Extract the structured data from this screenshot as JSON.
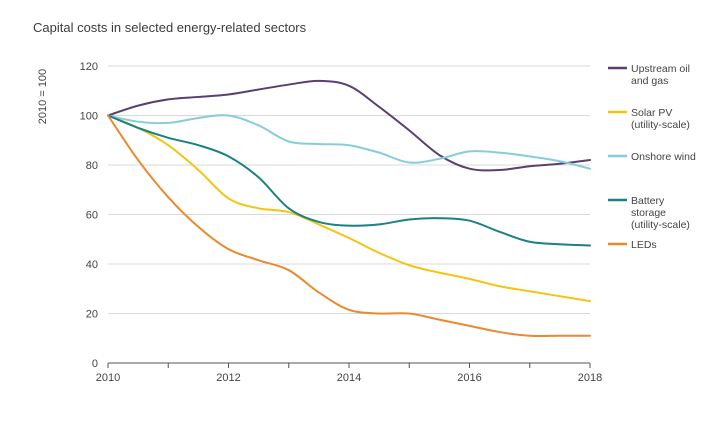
{
  "chart_data": {
    "type": "line",
    "title": "Capital costs in selected energy-related sectors",
    "ylabel": "2010 = 100",
    "xlabel": "",
    "xlim": [
      2010,
      2018
    ],
    "ylim": [
      0,
      120
    ],
    "x_ticks": [
      "2010",
      "2012",
      "2014",
      "2016",
      "2018"
    ],
    "y_ticks": [
      "0",
      "20",
      "40",
      "60",
      "80",
      "100",
      "120"
    ],
    "grid": "horizontal",
    "legend_position": "right",
    "series": [
      {
        "name_lines": [
          "Upstream oil",
          "and gas"
        ],
        "color": "#5a3f73",
        "points": [
          [
            2010,
            100
          ],
          [
            2010.5,
            104
          ],
          [
            2011,
            106.5
          ],
          [
            2011.5,
            107.5
          ],
          [
            2012,
            108.5
          ],
          [
            2012.5,
            110.5
          ],
          [
            2013,
            112.5
          ],
          [
            2013.5,
            114
          ],
          [
            2014,
            112
          ],
          [
            2014.5,
            103.5
          ],
          [
            2015,
            94
          ],
          [
            2015.5,
            84
          ],
          [
            2016,
            78.5
          ],
          [
            2016.5,
            78
          ],
          [
            2017,
            79.5
          ],
          [
            2017.5,
            80.5
          ],
          [
            2018,
            82
          ]
        ]
      },
      {
        "name_lines": [
          "Solar PV",
          "(utility-scale)"
        ],
        "color": "#f2c511",
        "points": [
          [
            2010,
            100
          ],
          [
            2010.5,
            95
          ],
          [
            2011,
            88
          ],
          [
            2011.5,
            78
          ],
          [
            2012,
            66.5
          ],
          [
            2012.5,
            62.5
          ],
          [
            2013,
            61
          ],
          [
            2013.5,
            56
          ],
          [
            2014,
            50.5
          ],
          [
            2014.5,
            44.5
          ],
          [
            2015,
            39.5
          ],
          [
            2015.5,
            36.5
          ],
          [
            2016,
            34
          ],
          [
            2016.5,
            31
          ],
          [
            2017,
            29
          ],
          [
            2017.5,
            27
          ],
          [
            2018,
            25
          ]
        ]
      },
      {
        "name_lines": [
          "Onshore wind"
        ],
        "color": "#86cdd9",
        "points": [
          [
            2010,
            100
          ],
          [
            2010.5,
            97.5
          ],
          [
            2011,
            97
          ],
          [
            2011.5,
            99
          ],
          [
            2012,
            100
          ],
          [
            2012.5,
            96
          ],
          [
            2013,
            89.5
          ],
          [
            2013.5,
            88.5
          ],
          [
            2014,
            88
          ],
          [
            2014.5,
            85
          ],
          [
            2015,
            81
          ],
          [
            2015.5,
            82.5
          ],
          [
            2016,
            85.5
          ],
          [
            2016.5,
            85
          ],
          [
            2017,
            83.5
          ],
          [
            2017.5,
            81.5
          ],
          [
            2018,
            78.5
          ]
        ]
      },
      {
        "name_lines": [
          "Battery",
          "storage",
          "(utility-scale)"
        ],
        "color": "#1a8185",
        "points": [
          [
            2010,
            100
          ],
          [
            2010.5,
            95
          ],
          [
            2011,
            91
          ],
          [
            2011.5,
            88
          ],
          [
            2012,
            83.5
          ],
          [
            2012.5,
            75
          ],
          [
            2013,
            62.5
          ],
          [
            2013.5,
            57
          ],
          [
            2014,
            55.5
          ],
          [
            2014.5,
            56
          ],
          [
            2015,
            58
          ],
          [
            2015.5,
            58.5
          ],
          [
            2016,
            57.5
          ],
          [
            2016.5,
            53
          ],
          [
            2017,
            49
          ],
          [
            2017.5,
            48
          ],
          [
            2018,
            47.5
          ]
        ]
      },
      {
        "name_lines": [
          "LEDs"
        ],
        "color": "#ea8a2c",
        "points": [
          [
            2010,
            100
          ],
          [
            2010.5,
            82
          ],
          [
            2011,
            67
          ],
          [
            2011.5,
            55
          ],
          [
            2012,
            46
          ],
          [
            2012.5,
            41.5
          ],
          [
            2013,
            37.5
          ],
          [
            2013.5,
            28.5
          ],
          [
            2014,
            21.5
          ],
          [
            2014.5,
            20
          ],
          [
            2015,
            20
          ],
          [
            2015.5,
            17.5
          ],
          [
            2016,
            15
          ],
          [
            2016.5,
            12.5
          ],
          [
            2017,
            11
          ],
          [
            2017.5,
            11
          ],
          [
            2018,
            11
          ]
        ]
      }
    ]
  }
}
